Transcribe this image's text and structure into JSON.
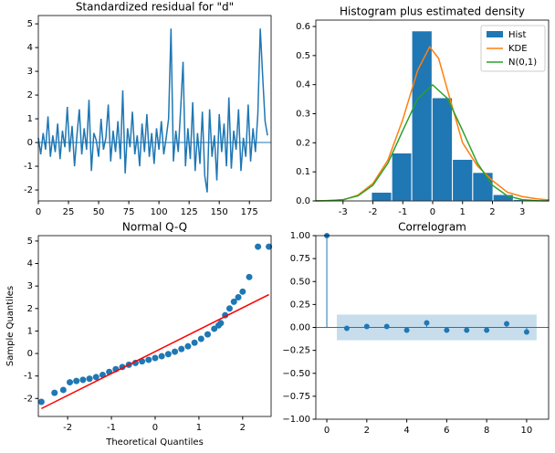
{
  "chart_data": [
    {
      "type": "line",
      "title": "Standardized residual for \"d\"",
      "color": "#1f77b4",
      "hline": 0,
      "x": [
        0,
        2,
        4,
        6,
        8,
        10,
        12,
        14,
        16,
        18,
        20,
        22,
        24,
        26,
        28,
        30,
        32,
        34,
        36,
        38,
        40,
        42,
        44,
        46,
        48,
        50,
        52,
        54,
        56,
        58,
        60,
        62,
        64,
        66,
        68,
        70,
        72,
        74,
        76,
        78,
        80,
        82,
        84,
        86,
        88,
        90,
        92,
        94,
        96,
        98,
        100,
        102,
        104,
        106,
        108,
        110,
        112,
        114,
        116,
        118,
        120,
        122,
        124,
        126,
        128,
        130,
        132,
        134,
        136,
        138,
        140,
        142,
        144,
        146,
        148,
        150,
        152,
        154,
        156,
        158,
        160,
        162,
        164,
        166,
        168,
        170,
        172,
        174,
        176,
        178,
        180,
        182,
        184,
        186,
        188,
        190
      ],
      "values": [
        0.2,
        -0.5,
        0.4,
        -0.3,
        1.1,
        -0.6,
        0.3,
        -0.4,
        0.8,
        -0.7,
        0.5,
        -0.2,
        1.5,
        -0.4,
        0.7,
        -1.0,
        0.3,
        1.4,
        -0.5,
        0.6,
        -0.3,
        1.8,
        -1.2,
        0.4,
        0.1,
        -0.6,
        1.0,
        -0.3,
        0.2,
        1.6,
        -0.8,
        0.5,
        -0.4,
        0.9,
        -0.7,
        2.2,
        -1.3,
        0.6,
        -0.2,
        1.3,
        -0.5,
        0.3,
        -1.0,
        0.8,
        -0.4,
        1.2,
        -0.6,
        0.4,
        -0.9,
        0.6,
        -0.3,
        0.9,
        -0.5,
        0.2,
        1.0,
        4.8,
        -0.8,
        0.5,
        -0.4,
        1.4,
        3.4,
        -1.0,
        0.6,
        -0.7,
        1.7,
        -1.2,
        0.4,
        -0.9,
        1.3,
        -1.4,
        -2.1,
        1.4,
        -0.6,
        0.3,
        -1.6,
        1.2,
        -0.4,
        0.8,
        -1.0,
        1.9,
        -1.1,
        0.5,
        -0.3,
        1.4,
        -1.2,
        0.2,
        -0.6,
        1.6,
        -0.8,
        0.6,
        -0.4,
        1.2,
        4.8,
        2.8,
        0.9,
        0.3
      ],
      "xlim": [
        0,
        193
      ],
      "ylim": [
        -2.46,
        5.35
      ],
      "xticks": [
        0,
        25,
        50,
        75,
        100,
        125,
        150,
        175
      ],
      "yticks": [
        -2,
        -1,
        0,
        1,
        2,
        3,
        4,
        5
      ]
    },
    {
      "type": "histogram",
      "title": "Histogram plus estimated density",
      "name": "Hist",
      "color": "#1f77b4",
      "legend": "upper right",
      "bins": [
        -2.05,
        -1.37,
        -0.7,
        -0.02,
        0.66,
        1.34,
        2.02,
        2.7,
        3.38
      ],
      "values": [
        0.03,
        0.165,
        0.585,
        0.355,
        0.143,
        0.098,
        0.022,
        0.005
      ],
      "series": [
        {
          "name": "KDE",
          "color": "#ff7f0e",
          "x": [
            -3.9,
            -3,
            -2.5,
            -2,
            -1.5,
            -1,
            -0.5,
            -0.1,
            0.2,
            0.5,
            1,
            1.5,
            2,
            2.5,
            3,
            3.5,
            3.9
          ],
          "values": [
            0.0,
            0.003,
            0.02,
            0.06,
            0.14,
            0.28,
            0.45,
            0.53,
            0.49,
            0.38,
            0.2,
            0.12,
            0.07,
            0.03,
            0.015,
            0.007,
            0.003
          ]
        },
        {
          "name": "N(0,1)",
          "color": "#2ca02c",
          "x": [
            -3.9,
            -3.5,
            -3,
            -2.5,
            -2,
            -1.5,
            -1,
            -0.5,
            0,
            0.5,
            1,
            1.5,
            2,
            2.5,
            3,
            3.5,
            3.9
          ],
          "values": [
            0.0002,
            0.0009,
            0.0044,
            0.0175,
            0.054,
            0.1295,
            0.242,
            0.352,
            0.399,
            0.352,
            0.242,
            0.1295,
            0.054,
            0.0175,
            0.0044,
            0.0009,
            0.0002
          ]
        }
      ],
      "xlim": [
        -3.91,
        3.88
      ],
      "ylim": [
        0,
        0.622
      ],
      "xticks": [
        -3,
        -2,
        -1,
        0,
        1,
        2,
        3
      ],
      "yticks": [
        {
          "value": 0,
          "label": "0.0"
        },
        0.1,
        0.2,
        0.3,
        0.4,
        0.5,
        0.6
      ]
    },
    {
      "type": "scatter",
      "title": "Normal Q-Q",
      "x_label": "Theoretical Quantiles",
      "y_label": "Sample Quantiles",
      "color": "#1f77b4",
      "x": [
        -2.6,
        -2.3,
        -2.1,
        -1.95,
        -1.8,
        -1.65,
        -1.5,
        -1.35,
        -1.2,
        -1.05,
        -0.9,
        -0.75,
        -0.6,
        -0.45,
        -0.3,
        -0.15,
        0,
        0.15,
        0.3,
        0.45,
        0.6,
        0.75,
        0.9,
        1.05,
        1.2,
        1.35,
        1.45,
        1.5,
        1.6,
        1.7,
        1.8,
        1.9,
        2.0,
        2.15,
        2.35,
        2.6
      ],
      "values": [
        -2.15,
        -1.75,
        -1.62,
        -1.28,
        -1.22,
        -1.17,
        -1.12,
        -1.05,
        -0.95,
        -0.82,
        -0.7,
        -0.6,
        -0.5,
        -0.42,
        -0.35,
        -0.28,
        -0.2,
        -0.12,
        -0.03,
        0.08,
        0.2,
        0.32,
        0.48,
        0.65,
        0.85,
        1.1,
        1.25,
        1.35,
        1.7,
        2.0,
        2.3,
        2.5,
        2.75,
        3.4,
        4.75,
        4.75
      ],
      "series": [
        {
          "color": "#ff0000",
          "x": [
            -2.6,
            2.6
          ],
          "values": [
            -2.45,
            2.62
          ]
        }
      ],
      "xlim": [
        -2.67,
        2.65
      ],
      "ylim": [
        -2.8,
        5.24
      ],
      "xticks": [
        -2,
        -1,
        0,
        1,
        2
      ],
      "yticks": [
        -2,
        -1,
        0,
        1,
        2,
        3,
        4,
        5
      ]
    },
    {
      "type": "stem",
      "title": "Correlogram",
      "color": "#1f77b4",
      "confidence": 0.14,
      "hline": 0,
      "x": [
        0,
        1,
        2,
        3,
        4,
        5,
        6,
        7,
        8,
        9,
        10
      ],
      "values": [
        1,
        -0.01,
        0.01,
        0.01,
        -0.03,
        0.05,
        -0.03,
        -0.03,
        -0.03,
        0.04,
        -0.05
      ],
      "xlim": [
        -0.55,
        11.1
      ],
      "ylim": [
        -1,
        1
      ],
      "xticks": [
        0,
        2,
        4,
        6,
        8,
        10
      ],
      "yticks": [
        {
          "value": -1,
          "label": "−1.00"
        },
        {
          "value": -0.75,
          "label": "−0.75"
        },
        {
          "value": -0.5,
          "label": "−0.50"
        },
        {
          "value": -0.25,
          "label": "−0.25"
        },
        {
          "value": 0,
          "label": "0.00"
        },
        {
          "value": 0.25,
          "label": "0.25"
        },
        {
          "value": 0.5,
          "label": "0.50"
        },
        {
          "value": 0.75,
          "label": "0.75"
        },
        {
          "value": 1,
          "label": "1.00"
        }
      ]
    }
  ]
}
